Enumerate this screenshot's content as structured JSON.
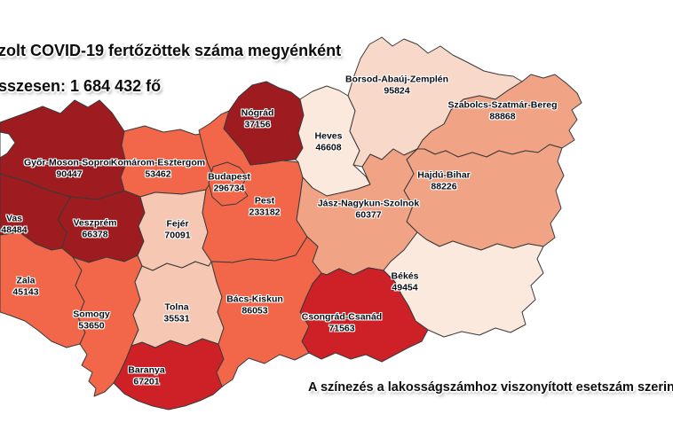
{
  "header": {
    "title_line": "zolt COVID-19 fertőzöttek száma megyénként",
    "total_line": "sszesen: 1 684 432 fő"
  },
  "footnote": "A színezés a lakosságszámhoz viszonyított esetszám szerint",
  "color_scale": {
    "darkest_red": "#9E1B20",
    "bright_red": "#CD2127",
    "orange_red": "#F26749",
    "salmon": "#F1A386",
    "light_salmon": "#F6C8B3",
    "pale_pink": "#F8D8C8",
    "palest_pink": "#FBE9DD"
  },
  "map": {
    "counties": [
      {
        "id": "gyms",
        "name": "Győr-Moson-Sopron",
        "value": "90447",
        "color": "#9E1B20"
      },
      {
        "id": "ke",
        "name": "Komárom-Esztergom",
        "value": "53462",
        "color": "#F26749"
      },
      {
        "id": "vas",
        "name": "Vas",
        "value": "48484",
        "color": "#9E1B20"
      },
      {
        "id": "veszprem",
        "name": "Veszprém",
        "value": "66378",
        "color": "#9E1B20"
      },
      {
        "id": "zala",
        "name": "Zala",
        "value": "45143",
        "color": "#F26749"
      },
      {
        "id": "somogy",
        "name": "Somogy",
        "value": "53650",
        "color": "#F26749"
      },
      {
        "id": "baranya",
        "name": "Baranya",
        "value": "67201",
        "color": "#CD2127"
      },
      {
        "id": "tolna",
        "name": "Tolna",
        "value": "35531",
        "color": "#F6C8B3"
      },
      {
        "id": "fejer",
        "name": "Fejér",
        "value": "70091",
        "color": "#F6C8B3"
      },
      {
        "id": "pest",
        "name": "Pest",
        "value": "233182",
        "color": "#F26749"
      },
      {
        "id": "budapest",
        "name": "Budapest",
        "value": "296734",
        "color": "#F26749"
      },
      {
        "id": "nograd",
        "name": "Nógrád",
        "value": "37156",
        "color": "#9E1B20"
      },
      {
        "id": "heves",
        "name": "Heves",
        "value": "46608",
        "color": "#FBE9DD"
      },
      {
        "id": "borsod",
        "name": "Borsod-Abaúj-Zemplén",
        "value": "95824",
        "color": "#F8D8C8"
      },
      {
        "id": "szabolcs",
        "name": "Szabolcs-Szatmár-Bereg",
        "value": "88868",
        "color": "#F1A386"
      },
      {
        "id": "hajdu",
        "name": "Hajdú-Bihar",
        "value": "88226",
        "color": "#F1A386"
      },
      {
        "id": "jnsz",
        "name": "Jász-Nagykun-Szolnok",
        "value": "60377",
        "color": "#F1A386"
      },
      {
        "id": "bekes",
        "name": "Békés",
        "value": "49454",
        "color": "#FBE9DD"
      },
      {
        "id": "csongrad",
        "name": "Csongrád-Csanád",
        "value": "71563",
        "color": "#CD2127"
      },
      {
        "id": "bacs",
        "name": "Bács-Kiskun",
        "value": "86053",
        "color": "#F26749"
      }
    ]
  },
  "chart_data": {
    "type": "table",
    "title": "zolt COVID-19 fertőzöttek száma megyénként",
    "total_label": "sszesen: 1 684 432 fő",
    "total": 1684432,
    "categories": [
      "Győr-Moson-Sopron",
      "Komárom-Esztergom",
      "Vas",
      "Veszprém",
      "Zala",
      "Somogy",
      "Baranya",
      "Tolna",
      "Fejér",
      "Pest",
      "Budapest",
      "Nógrád",
      "Heves",
      "Borsod-Abaúj-Zemplén",
      "Szabolcs-Szatmár-Bereg",
      "Hajdú-Bihar",
      "Jász-Nagykun-Szolnok",
      "Békés",
      "Csongrád-Csanád",
      "Bács-Kiskun"
    ],
    "values": [
      90447,
      53462,
      48484,
      66378,
      45143,
      53650,
      67201,
      35531,
      70091,
      233182,
      296734,
      37156,
      46608,
      95824,
      88868,
      88226,
      60377,
      49454,
      71563,
      86053
    ],
    "note": "A színezés a lakosságszámhoz viszonyított esetszám szerint"
  }
}
